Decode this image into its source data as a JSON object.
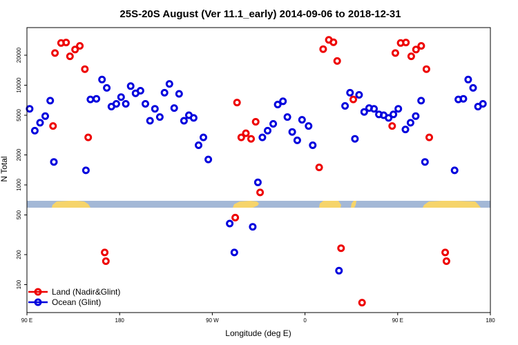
{
  "chart_data": {
    "type": "scatter",
    "title": "25S-20S August (Ver 11.1_early)   2014-09-06 to 2018-12-31",
    "xlabel": "Longitude (deg E)",
    "ylabel": "N Total",
    "xlim": [
      90,
      450
    ],
    "ylim": [
      50,
      40000
    ],
    "yscale": "log",
    "x_ticks": [
      {
        "value": 90,
        "label": "90 E"
      },
      {
        "value": 162,
        "label": "180"
      },
      {
        "value": 234,
        "label": "90 W"
      },
      {
        "value": 306,
        "label": "0"
      },
      {
        "value": 378,
        "label": "90 E"
      },
      {
        "value": 450,
        "label": "180"
      }
    ],
    "y_ticks": [
      {
        "value": 100,
        "label": "100"
      },
      {
        "value": 200,
        "label": "200"
      },
      {
        "value": 500,
        "label": "500"
      },
      {
        "value": 1000,
        "label": "1000"
      },
      {
        "value": 2000,
        "label": "2000"
      },
      {
        "value": 5000,
        "label": "5000"
      },
      {
        "value": 10000,
        "label": "10000"
      },
      {
        "value": 20000,
        "label": "20000"
      }
    ],
    "legend_position": "bottom-left",
    "series": [
      {
        "name": "Land (Nadir&Glint)",
        "color": "#ee0000",
        "points": [
          [
            110.3,
            3900
          ],
          [
            111.8,
            21000
          ],
          [
            116.5,
            26500
          ],
          [
            120.4,
            26800
          ],
          [
            123.4,
            19500
          ],
          [
            127.4,
            22800
          ],
          [
            131.1,
            24800
          ],
          [
            135.0,
            14500
          ],
          [
            137.6,
            3000
          ],
          [
            150.4,
            210
          ],
          [
            151.3,
            172
          ],
          [
            251.8,
            470
          ],
          [
            253.2,
            6700
          ],
          [
            256.5,
            3000
          ],
          [
            260.1,
            3300
          ],
          [
            264.1,
            2900
          ],
          [
            267.7,
            4300
          ],
          [
            271.1,
            840
          ],
          [
            317.0,
            1500
          ],
          [
            320.1,
            23000
          ],
          [
            324.5,
            28500
          ],
          [
            328.1,
            27000
          ],
          [
            331.0,
            17500
          ],
          [
            334.0,
            232
          ],
          [
            343.5,
            7200
          ],
          [
            350.3,
            66
          ],
          [
            373.7,
            3900
          ],
          [
            376.2,
            21000
          ],
          [
            380.3,
            26500
          ],
          [
            384.4,
            26800
          ],
          [
            388.5,
            19500
          ],
          [
            392.2,
            22800
          ],
          [
            396.3,
            24800
          ],
          [
            400.3,
            14500
          ],
          [
            402.5,
            3000
          ],
          [
            414.9,
            210
          ],
          [
            415.9,
            172
          ]
        ]
      },
      {
        "name": "Ocean (Glint)",
        "color": "#0000dd",
        "points": [
          [
            92.1,
            5800
          ],
          [
            96.1,
            3500
          ],
          [
            100.2,
            4200
          ],
          [
            104.2,
            4900
          ],
          [
            108.1,
            7000
          ],
          [
            110.9,
            1700
          ],
          [
            135.8,
            1400
          ],
          [
            139.3,
            7200
          ],
          [
            144.0,
            7300
          ],
          [
            148.3,
            11400
          ],
          [
            152.0,
            9400
          ],
          [
            155.6,
            6100
          ],
          [
            159.4,
            6500
          ],
          [
            163.1,
            7600
          ],
          [
            166.8,
            6500
          ],
          [
            170.6,
            9800
          ],
          [
            174.4,
            8300
          ],
          [
            178.2,
            8800
          ],
          [
            182.0,
            6500
          ],
          [
            185.6,
            4400
          ],
          [
            189.4,
            5800
          ],
          [
            193.2,
            4800
          ],
          [
            196.9,
            8400
          ],
          [
            200.7,
            10300
          ],
          [
            204.4,
            5900
          ],
          [
            208.2,
            8200
          ],
          [
            212.0,
            4400
          ],
          [
            215.8,
            5000
          ],
          [
            219.5,
            4700
          ],
          [
            223.3,
            2500
          ],
          [
            227.1,
            3000
          ],
          [
            230.9,
            1800
          ],
          [
            247.5,
            410
          ],
          [
            251.1,
            210
          ],
          [
            265.4,
            380
          ],
          [
            269.4,
            1060
          ],
          [
            272.9,
            3000
          ],
          [
            277.0,
            3500
          ],
          [
            281.3,
            4100
          ],
          [
            284.8,
            6400
          ],
          [
            288.9,
            6900
          ],
          [
            292.3,
            4800
          ],
          [
            296.1,
            3400
          ],
          [
            300.0,
            2800
          ],
          [
            303.7,
            4500
          ],
          [
            308.8,
            3900
          ],
          [
            312.0,
            2500
          ],
          [
            332.4,
            138
          ],
          [
            337.1,
            6200
          ],
          [
            341.0,
            8400
          ],
          [
            344.8,
            2900
          ],
          [
            348.0,
            8000
          ],
          [
            352.0,
            5400
          ],
          [
            355.8,
            5900
          ],
          [
            359.6,
            5800
          ],
          [
            363.4,
            5100
          ],
          [
            367.1,
            5000
          ],
          [
            370.9,
            4700
          ],
          [
            374.7,
            5100
          ],
          [
            378.5,
            5800
          ],
          [
            384.0,
            3600
          ],
          [
            388.0,
            4200
          ],
          [
            392.0,
            4900
          ],
          [
            396.2,
            7000
          ],
          [
            399.2,
            1700
          ],
          [
            422.2,
            1400
          ],
          [
            425.1,
            7200
          ],
          [
            429.0,
            7300
          ],
          [
            432.8,
            11400
          ],
          [
            436.6,
            9400
          ],
          [
            440.4,
            6100
          ],
          [
            444.2,
            6500
          ]
        ]
      }
    ]
  }
}
